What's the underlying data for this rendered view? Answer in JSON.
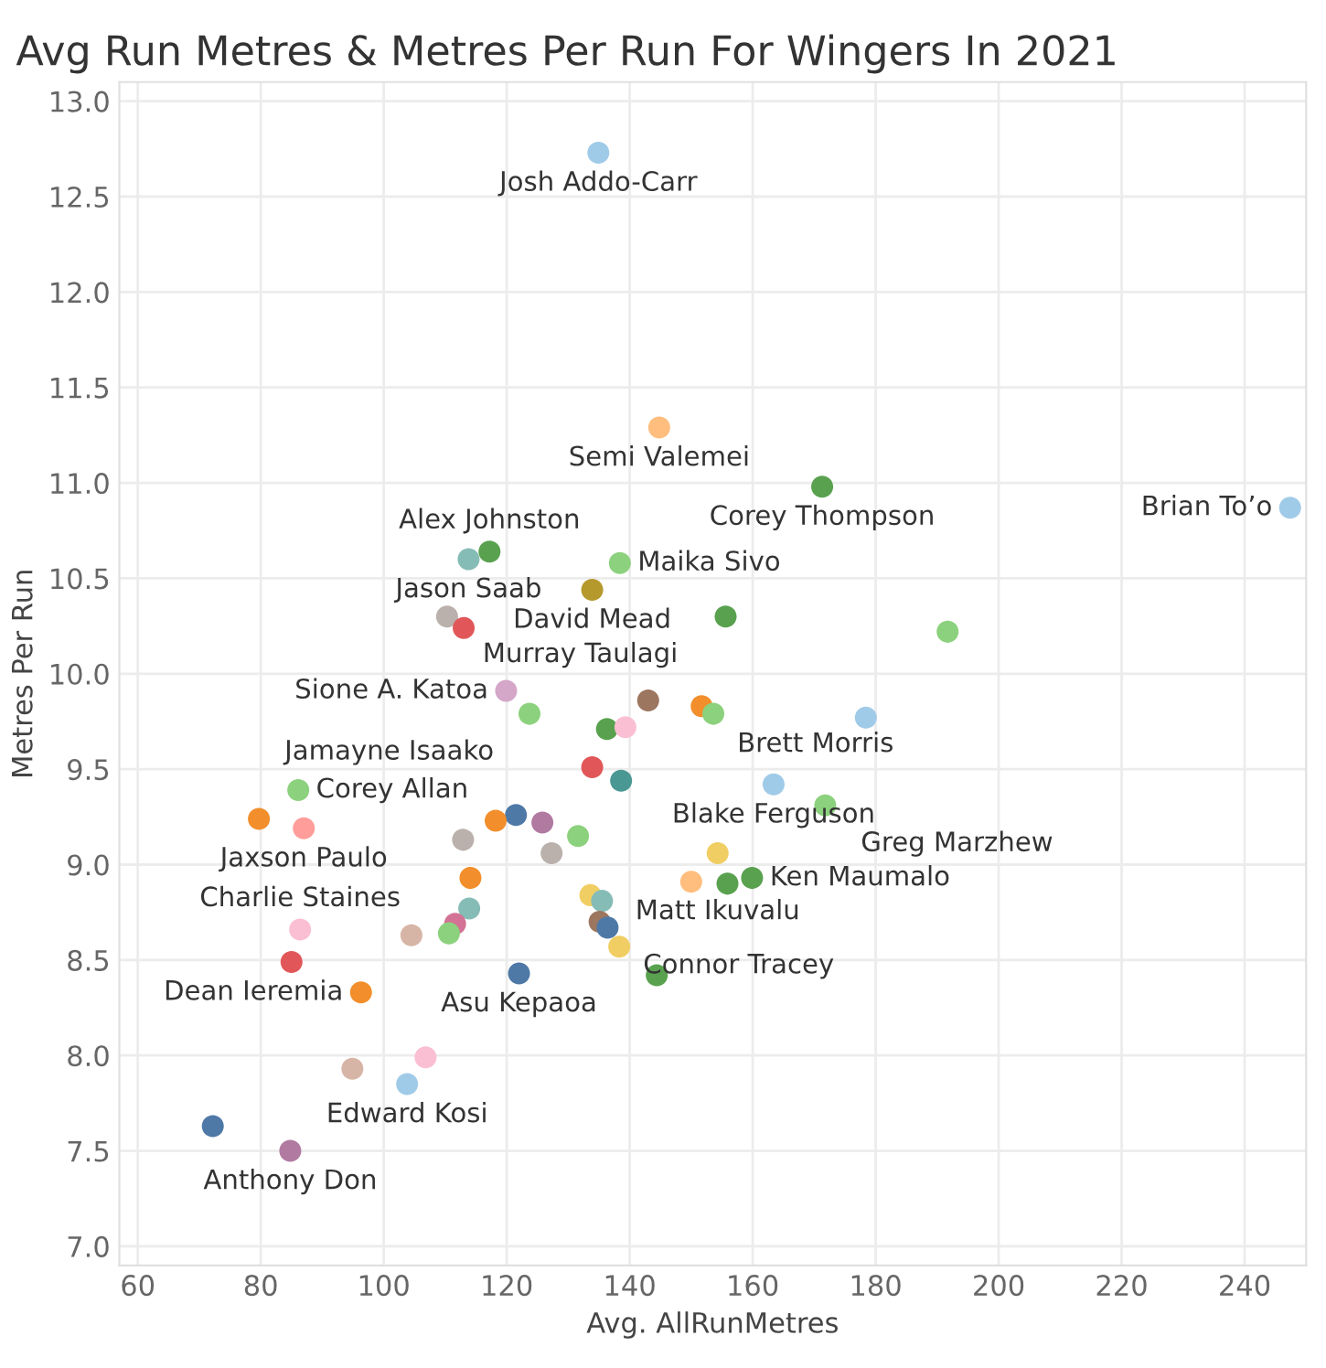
{
  "chart_data": {
    "type": "scatter",
    "title": "Avg Run Metres & Metres Per Run For Wingers In 2021",
    "xlabel": "Avg. AllRunMetres",
    "ylabel": "Metres Per Run",
    "x": [
      134.9,
      144.8,
      171.3,
      247.4,
      113.8,
      117.2,
      138.4,
      133.9,
      110.3,
      113.0,
      155.6,
      191.7,
      119.9,
      123.7,
      143.0,
      151.7,
      153.6,
      178.4,
      136.3,
      139.3,
      133.9,
      138.6,
      163.4,
      171.8,
      86.1,
      79.7,
      87.0,
      121.5,
      118.2,
      125.8,
      131.6,
      112.9,
      127.3,
      114.1,
      150.0,
      154.3,
      159.9,
      155.9,
      133.6,
      135.5,
      113.9,
      135.1,
      136.4,
      111.6,
      110.6,
      104.5,
      138.3,
      86.4,
      85.0,
      122.0,
      144.4,
      96.3,
      106.8,
      94.9,
      103.8,
      72.2,
      84.8
    ],
    "values": [
      12.73,
      11.29,
      10.98,
      10.87,
      10.6,
      10.64,
      10.58,
      10.44,
      10.3,
      10.24,
      10.3,
      10.22,
      9.91,
      9.79,
      9.86,
      9.83,
      9.79,
      9.77,
      9.71,
      9.72,
      9.51,
      9.44,
      9.42,
      9.31,
      9.39,
      9.24,
      9.19,
      9.26,
      9.23,
      9.22,
      9.15,
      9.13,
      9.06,
      8.93,
      8.91,
      9.06,
      8.93,
      8.9,
      8.84,
      8.81,
      8.77,
      8.7,
      8.67,
      8.69,
      8.64,
      8.63,
      8.57,
      8.66,
      8.49,
      8.43,
      8.42,
      8.33,
      7.99,
      7.93,
      7.85,
      7.63,
      7.5
    ],
    "colors": [
      "#a0cbe8",
      "#ffbe7d",
      "#59a14f",
      "#a0cbe8",
      "#86bcb6",
      "#59a14f",
      "#8cd17d",
      "#b6992d",
      "#bab0ac",
      "#e15759",
      "#59a14f",
      "#8cd17d",
      "#d4a6c8",
      "#8cd17d",
      "#9d7660",
      "#f28e2b",
      "#8cd17d",
      "#a0cbe8",
      "#59a14f",
      "#fabfd2",
      "#e15759",
      "#499894",
      "#a0cbe8",
      "#8cd17d",
      "#8cd17d",
      "#f28e2b",
      "#ff9d9a",
      "#4e79a7",
      "#f28e2b",
      "#b07aa1",
      "#8cd17d",
      "#bab0ac",
      "#bab0ac",
      "#f28e2b",
      "#ffbe7d",
      "#f1ce63",
      "#59a14f",
      "#59a14f",
      "#f1ce63",
      "#86bcb6",
      "#86bcb6",
      "#9d7660",
      "#4e79a7",
      "#d37295",
      "#8cd17d",
      "#d7b5a6",
      "#f1ce63",
      "#fabfd2",
      "#e15759",
      "#4e79a7",
      "#59a14f",
      "#f28e2b",
      "#fabfd2",
      "#d7b5a6",
      "#a0cbe8",
      "#4e79a7",
      "#b07aa1"
    ],
    "annotations": [
      {
        "text": "Josh Addo-Carr",
        "x": 134.9,
        "y": 12.73
      },
      {
        "text": "Semi Valemei",
        "x": 144.8,
        "y": 11.29
      },
      {
        "text": "Corey Thompson",
        "x": 171.3,
        "y": 10.98
      },
      {
        "text": "Brian To’o",
        "x": 247.4,
        "y": 10.87
      },
      {
        "text": "Jason Saab",
        "x": 113.8,
        "y": 10.6
      },
      {
        "text": "Alex Johnston",
        "x": 117.2,
        "y": 10.64
      },
      {
        "text": "Maika Sivo",
        "x": 138.4,
        "y": 10.58
      },
      {
        "text": "David Mead",
        "x": 133.9,
        "y": 10.44
      },
      {
        "text": "Murray Taulagi",
        "x": 110.3,
        "y": 10.3
      },
      {
        "text": "Sione A. Katoa",
        "x": 119.9,
        "y": 9.91
      },
      {
        "text": "Brett Morris",
        "x": 151.7,
        "y": 9.83
      },
      {
        "text": "Jamayne Isaako",
        "x": 123.7,
        "y": 9.79
      },
      {
        "text": "Blake Ferguson",
        "x": 163.4,
        "y": 9.42
      },
      {
        "text": "Greg Marzhew",
        "x": 171.8,
        "y": 9.31
      },
      {
        "text": "Corey Allan",
        "x": 86.1,
        "y": 9.39
      },
      {
        "text": "Matt Ikuvalu",
        "x": 154.3,
        "y": 9.06
      },
      {
        "text": "Jaxson Paulo",
        "x": 87.0,
        "y": 9.19
      },
      {
        "text": "Ken Maumalo",
        "x": 159.9,
        "y": 8.93
      },
      {
        "text": "Charlie Staines",
        "x": 86.4,
        "y": 8.66
      },
      {
        "text": "Connor Tracey",
        "x": 136.4,
        "y": 8.67
      },
      {
        "text": "Asu Kepaoa",
        "x": 122.0,
        "y": 8.43
      },
      {
        "text": "Dean Ieremia",
        "x": 96.3,
        "y": 8.33
      },
      {
        "text": "Edward Kosi",
        "x": 103.8,
        "y": 7.85
      },
      {
        "text": "Anthony Don",
        "x": 84.8,
        "y": 7.5
      }
    ],
    "xlim": [
      57,
      250
    ],
    "ylim": [
      6.9,
      13.1
    ],
    "xticks": [
      60,
      80,
      100,
      120,
      140,
      160,
      180,
      200,
      220,
      240
    ],
    "yticks": [
      {
        "value": 7,
        "label": "7.0"
      },
      7.5,
      {
        "value": 8,
        "label": "8.0"
      },
      8.5,
      {
        "value": 9,
        "label": "9.0"
      },
      9.5,
      {
        "value": 10,
        "label": "10.0"
      },
      10.5,
      {
        "value": 11,
        "label": "11.0"
      },
      11.5,
      {
        "value": 12,
        "label": "12.0"
      },
      12.5,
      {
        "value": 13,
        "label": "13.0"
      }
    ],
    "grid": true,
    "marker": "circle"
  }
}
